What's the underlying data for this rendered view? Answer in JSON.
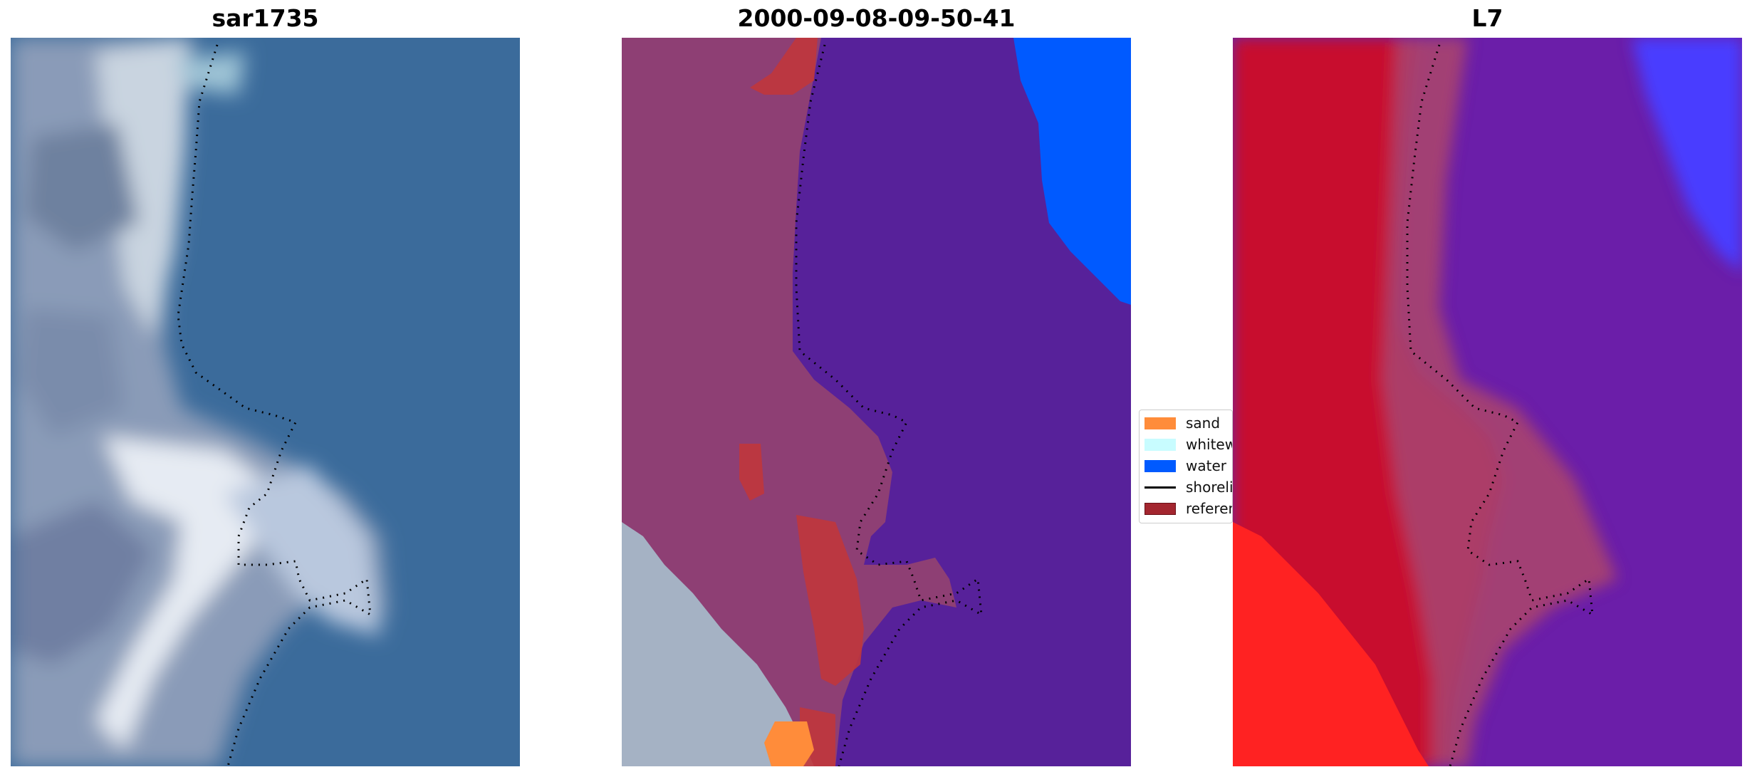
{
  "panels": [
    {
      "title": "sar1735"
    },
    {
      "title": "2000-09-08-09-50-41"
    },
    {
      "title": "L7"
    }
  ],
  "legend": {
    "items": [
      {
        "label": "sand",
        "color": "#ff8c3a",
        "kind": "patch"
      },
      {
        "label": "whitewater",
        "color": "#c8fcff",
        "kind": "patch"
      },
      {
        "label": "water",
        "color": "#005aff",
        "kind": "patch"
      },
      {
        "label": "shoreline",
        "color": "#000000",
        "kind": "line"
      },
      {
        "label": "reference shoreline",
        "color": "#a3262f",
        "kind": "patch"
      }
    ]
  },
  "colors": {
    "ocean_rgb": "#3a6a9a",
    "land_rgb": "#8c9cb8",
    "classified_water": "#57219a",
    "classified_land": "#8e3f74",
    "mndwi_land": "#c8102e",
    "mndwi_water": "#6a1fa8",
    "mndwi_bright_red": "#ff2020",
    "mndwi_blue": "#4040ff"
  }
}
